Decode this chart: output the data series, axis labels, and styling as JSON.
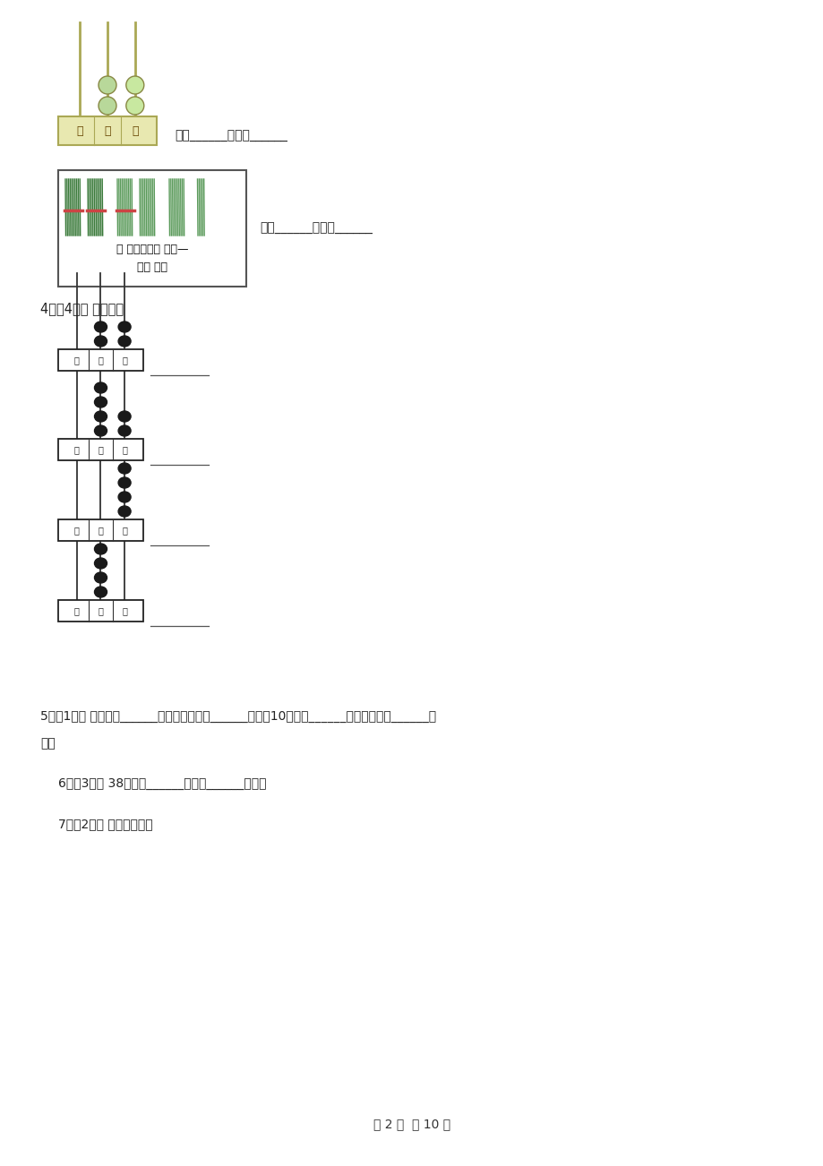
{
  "bg_color": "#ffffff",
  "page_width": 9.2,
  "page_height": 13.02,
  "texts": {
    "read_write_1": "读作______，写作______",
    "read_write_2": "读作______，写作______",
    "q4_label": "4．（4分） 看图填数",
    "q5_label": "5．（1分） 一双手是______个十，两双手是______个十，10双手是______个十，也就是______个",
    "q5_cont": "百。",
    "q6_label": "6．（3分） 38里面有______个一和______个十。",
    "q7_label": "7．（2分） 填运算符号。",
    "page_footer": "第 2 页  共 10 页",
    "bai": "百",
    "shi": "十",
    "ge": "个",
    "sticks_line1": "（ ）个十和（ ）个—",
    "sticks_line2": "是（ ）。"
  }
}
